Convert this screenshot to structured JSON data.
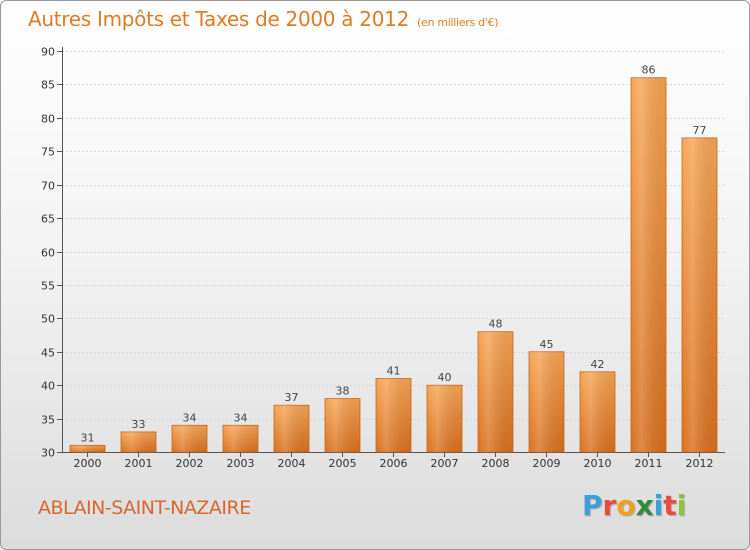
{
  "title": "Autres Impôts et Taxes de 2000 à 2012",
  "subtitle": "(en milliers d'€)",
  "town": "ABLAIN-SAINT-NAZAIRE",
  "logo": {
    "letters": [
      "P",
      "r",
      "o",
      "x",
      "i",
      "t",
      "i"
    ],
    "colors": [
      "#3aa0d8",
      "#e74c3c",
      "#f0a020",
      "#2e8b3d",
      "#3aa0d8",
      "#e74c3c",
      "#8fc33a"
    ]
  },
  "colors": {
    "bar_top": "#f7a554",
    "bar_bottom": "#d9701f",
    "bar_stroke": "#c7661c",
    "accent": "#e07b24"
  },
  "chart_data": {
    "type": "bar",
    "categories": [
      "2000",
      "2001",
      "2002",
      "2003",
      "2004",
      "2005",
      "2006",
      "2007",
      "2008",
      "2009",
      "2010",
      "2011",
      "2012"
    ],
    "values": [
      31,
      33,
      34,
      34,
      37,
      38,
      41,
      40,
      48,
      45,
      42,
      86,
      77
    ],
    "ylim": [
      30,
      90
    ],
    "yticks": [
      30,
      35,
      40,
      45,
      50,
      55,
      60,
      65,
      70,
      75,
      80,
      85,
      90
    ],
    "grid": true
  }
}
